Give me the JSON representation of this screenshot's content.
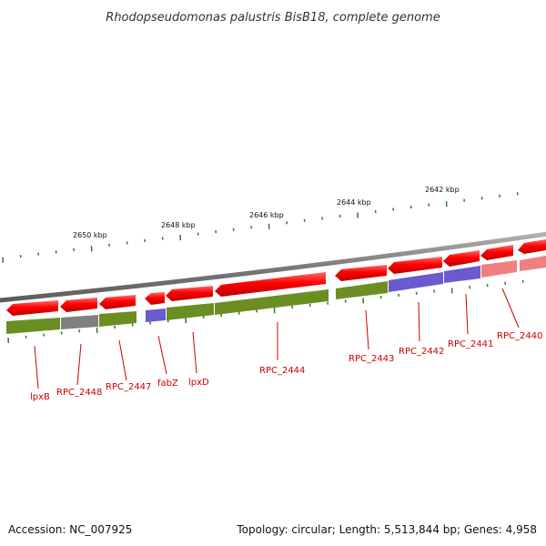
{
  "title": "Rhodopseudomonas palustris BisB18, complete genome",
  "accession": "Accession: NC_007925",
  "summary": "Topology: circular; Length: 5,513,844 bp; Genes: 4,958",
  "colors": {
    "backbone": "#8a8a8a",
    "cds": "#ff0000",
    "cog_green": "#6b8e23",
    "cog_gray": "#808080",
    "cog_blue": "#6a5acd",
    "cog_pink": "#f08080",
    "label": "#cc0000",
    "gc_tick": "#2a7a2a"
  },
  "tick_labels": [
    {
      "label": "2650 kbp"
    },
    {
      "label": "2648 kbp"
    },
    {
      "label": "2646 kbp"
    },
    {
      "label": "2644 kbp"
    },
    {
      "label": "2642 kbp"
    }
  ],
  "genes": [
    {
      "name": "lpxB",
      "cog_color": "#6b8e23"
    },
    {
      "name": "RPC_2448",
      "cog_color": "#808080"
    },
    {
      "name": "RPC_2447",
      "cog_color": "#6b8e23"
    },
    {
      "name": "fabZ",
      "cog_color": "#6a5acd"
    },
    {
      "name": "lpxD",
      "cog_color": "#6b8e23"
    },
    {
      "name": "RPC_2444",
      "cog_color": "#6b8e23"
    },
    {
      "name": "RPC_2443",
      "cog_color": "#6b8e23"
    },
    {
      "name": "RPC_2442",
      "cog_color": "#6a5acd"
    },
    {
      "name": "RPC_2441",
      "cog_color": "#6a5acd"
    },
    {
      "name": "RPC_2440",
      "cog_color": "#f08080"
    }
  ]
}
